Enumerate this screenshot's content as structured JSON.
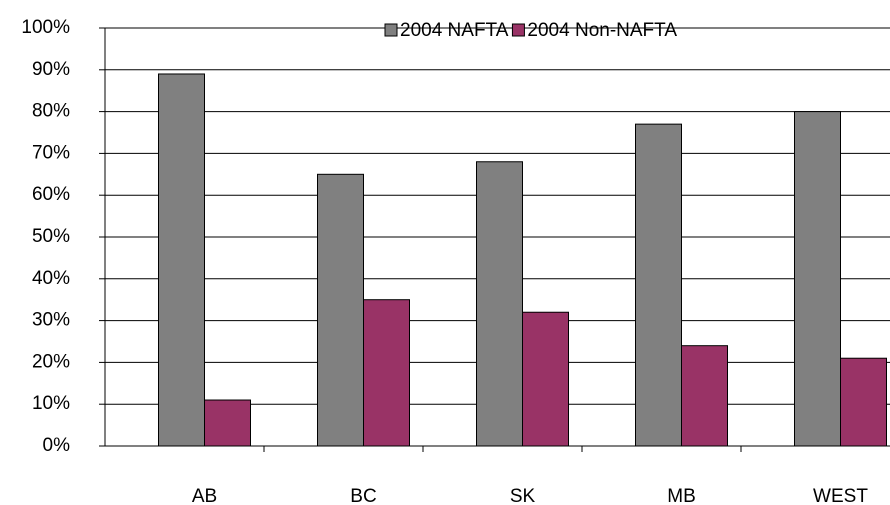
{
  "chart_data": {
    "type": "bar",
    "categories": [
      "AB",
      "BC",
      "SK",
      "MB",
      "WEST"
    ],
    "series": [
      {
        "name": "2004 NAFTA",
        "color": "#808080",
        "values": [
          89,
          65,
          68,
          77,
          80
        ]
      },
      {
        "name": "2004 Non-NAFTA",
        "color": "#993366",
        "values": [
          11,
          35,
          32,
          24,
          21
        ]
      }
    ],
    "ylim": [
      0,
      100
    ],
    "yticks": [
      {
        "value": 0,
        "label": "0%"
      },
      {
        "value": 10,
        "label": "10%"
      },
      {
        "value": 20,
        "label": "20%"
      },
      {
        "value": 30,
        "label": "30%"
      },
      {
        "value": 40,
        "label": "40%"
      },
      {
        "value": 50,
        "label": "50%"
      },
      {
        "value": 60,
        "label": "60%"
      },
      {
        "value": 70,
        "label": "70%"
      },
      {
        "value": 80,
        "label": "80%"
      },
      {
        "value": 90,
        "label": "90%"
      },
      {
        "value": 100,
        "label": "100%"
      }
    ],
    "grid": true,
    "legend": "top"
  }
}
